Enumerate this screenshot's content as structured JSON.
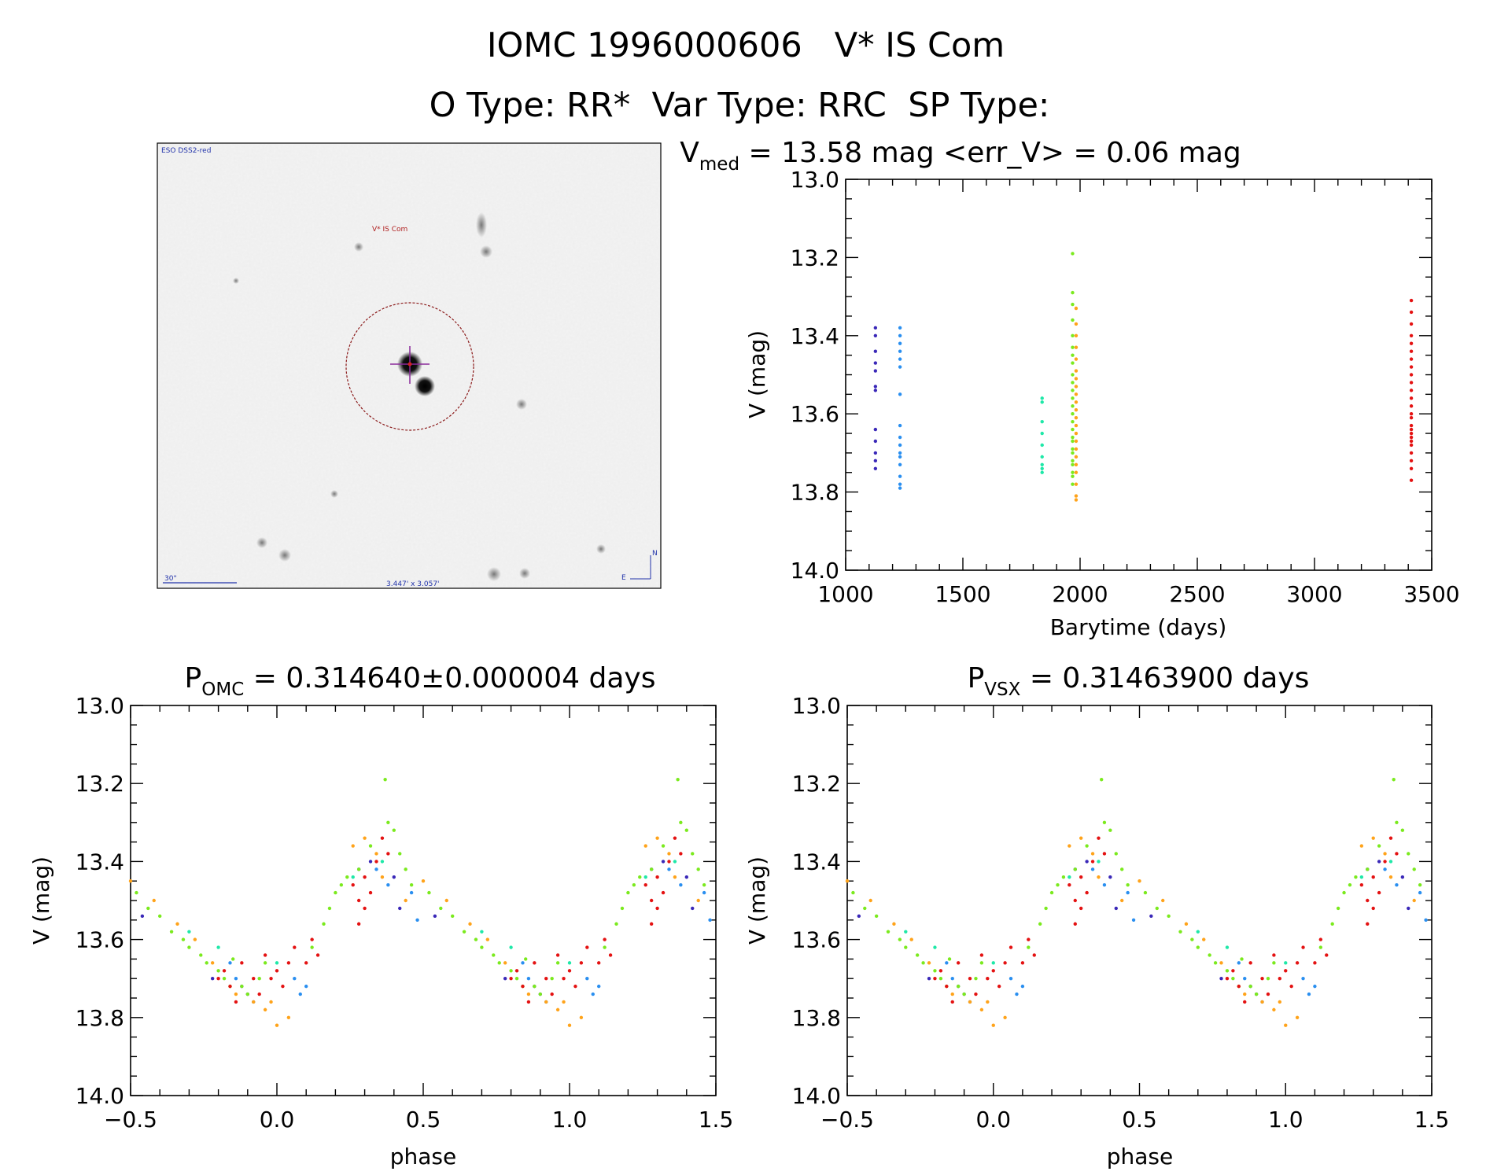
{
  "header": {
    "line1": "IOMC 1996000606   V* IS Com",
    "line2": "O Type: RR*  Var Type: RRC  SP Type:"
  },
  "finder": {
    "survey": "ESO DSS2-red",
    "target_label": "V* IS Com",
    "scale_label": "30\"",
    "size_label": "3.447' x 3.057'",
    "north": "N",
    "east": "E"
  },
  "series_colors": {
    "purple": "#3a28b8",
    "blue": "#2a8ff0",
    "cyan": "#1fe8a8",
    "green": "#7bea1e",
    "orange": "#ffa31a",
    "red": "#e41212"
  },
  "chart_data": [
    {
      "id": "lightcurve",
      "type": "scatter",
      "title_main": "V",
      "title_sub": "med",
      "title_rest": " = 13.58 mag <err_V> = 0.06 mag",
      "xlabel": "Barytime (days)",
      "ylabel": "V (mag)",
      "xlim": [
        1000,
        3500
      ],
      "ylim": [
        14.0,
        13.0
      ],
      "xticks": [
        "1000",
        "1500",
        "2000",
        "2500",
        "3000",
        "3500"
      ],
      "yticks": [
        "13.0",
        "13.2",
        "13.4",
        "13.6",
        "13.8",
        "14.0"
      ],
      "series": [
        {
          "name": "purple",
          "x": [
            1127,
            1127,
            1127,
            1127,
            1127,
            1127,
            1127,
            1127,
            1127,
            1127,
            1127,
            1127
          ],
          "y": [
            13.38,
            13.4,
            13.44,
            13.47,
            13.49,
            13.53,
            13.54,
            13.64,
            13.67,
            13.7,
            13.72,
            13.74
          ]
        },
        {
          "name": "blue",
          "x": [
            1232,
            1232,
            1232,
            1232,
            1232,
            1232,
            1232,
            1232,
            1232,
            1232,
            1232,
            1232,
            1232,
            1232,
            1232,
            1232
          ],
          "y": [
            13.38,
            13.4,
            13.42,
            13.44,
            13.46,
            13.48,
            13.55,
            13.63,
            13.66,
            13.68,
            13.7,
            13.71,
            13.73,
            13.76,
            13.78,
            13.79
          ]
        },
        {
          "name": "cyan",
          "x": [
            1838,
            1838,
            1838,
            1838,
            1838,
            1838,
            1838,
            1838,
            1838
          ],
          "y": [
            13.56,
            13.57,
            13.62,
            13.65,
            13.68,
            13.71,
            13.73,
            13.74,
            13.75
          ]
        },
        {
          "name": "green",
          "x": [
            1968,
            1968,
            1968,
            1968,
            1968,
            1968,
            1968,
            1968,
            1968,
            1968,
            1968,
            1968,
            1968,
            1968,
            1968,
            1968,
            1968,
            1968,
            1968,
            1968,
            1968,
            1968,
            1968,
            1968,
            1968
          ],
          "y": [
            13.19,
            13.29,
            13.32,
            13.36,
            13.4,
            13.43,
            13.45,
            13.47,
            13.5,
            13.52,
            13.54,
            13.56,
            13.58,
            13.6,
            13.62,
            13.64,
            13.66,
            13.67,
            13.69,
            13.7,
            13.72,
            13.73,
            13.75,
            13.76,
            13.78
          ]
        },
        {
          "name": "orange",
          "x": [
            1983,
            1983,
            1983,
            1983,
            1983,
            1983,
            1983,
            1983,
            1983,
            1983,
            1983,
            1983,
            1983,
            1983,
            1983,
            1983,
            1983,
            1983,
            1983,
            1983,
            1983,
            1983
          ],
          "y": [
            13.33,
            13.37,
            13.4,
            13.43,
            13.46,
            13.49,
            13.51,
            13.53,
            13.55,
            13.57,
            13.59,
            13.61,
            13.63,
            13.65,
            13.67,
            13.69,
            13.71,
            13.73,
            13.75,
            13.78,
            13.81,
            13.82
          ]
        },
        {
          "name": "red",
          "x": [
            3413,
            3413,
            3413,
            3413,
            3413,
            3413,
            3413,
            3413,
            3413,
            3413,
            3413,
            3413,
            3413,
            3413,
            3413,
            3413,
            3413,
            3413,
            3413,
            3413,
            3413,
            3413,
            3413,
            3413,
            3413
          ],
          "y": [
            13.31,
            13.34,
            13.37,
            13.4,
            13.42,
            13.44,
            13.46,
            13.48,
            13.5,
            13.52,
            13.54,
            13.56,
            13.58,
            13.6,
            13.61,
            13.63,
            13.64,
            13.65,
            13.66,
            13.67,
            13.68,
            13.7,
            13.72,
            13.74,
            13.77
          ]
        }
      ]
    },
    {
      "id": "phase-omc",
      "type": "scatter",
      "title_main": "P",
      "title_sub": "OMC",
      "title_rest": " = 0.314640±0.000004 days",
      "xlabel": "phase",
      "ylabel": "V (mag)",
      "xlim": [
        -0.5,
        1.5
      ],
      "ylim": [
        14.0,
        13.0
      ],
      "xticks": [
        "−0.5",
        "0.0",
        "0.5",
        "1.0",
        "1.5"
      ],
      "yticks": [
        "13.0",
        "13.2",
        "13.4",
        "13.6",
        "13.8",
        "14.0"
      ],
      "series": [
        {
          "name": "purple",
          "x": [
            -0.46,
            -0.22,
            -0.12,
            -0.1,
            0.28,
            0.32,
            0.4,
            0.42
          ],
          "y": [
            13.54,
            13.7,
            13.72,
            13.74,
            13.42,
            13.4,
            13.44,
            13.52
          ]
        },
        {
          "name": "blue",
          "x": [
            -0.16,
            -0.14,
            -0.08,
            0.06,
            0.08,
            0.1,
            0.34,
            0.38,
            0.46,
            0.48
          ],
          "y": [
            13.66,
            13.7,
            13.76,
            13.7,
            13.74,
            13.72,
            13.42,
            13.46,
            13.48,
            13.55
          ]
        },
        {
          "name": "cyan",
          "x": [
            -0.3,
            -0.2,
            0.0,
            0.26,
            0.36
          ],
          "y": [
            13.58,
            13.62,
            13.66,
            13.44,
            13.4
          ]
        },
        {
          "name": "green",
          "x": [
            -0.48,
            -0.44,
            -0.4,
            -0.36,
            -0.32,
            -0.3,
            -0.26,
            -0.24,
            -0.2,
            -0.18,
            -0.16,
            -0.12,
            -0.1,
            -0.06,
            -0.04,
            0.12,
            0.16,
            0.18,
            0.2,
            0.22,
            0.24,
            0.28,
            0.32,
            0.38,
            0.4,
            0.42,
            0.44,
            0.46,
            -0.15,
            0.37
          ],
          "y": [
            13.48,
            13.52,
            13.54,
            13.58,
            13.6,
            13.62,
            13.64,
            13.66,
            13.68,
            13.7,
            13.72,
            13.72,
            13.74,
            13.7,
            13.66,
            13.62,
            13.56,
            13.52,
            13.48,
            13.46,
            13.44,
            13.42,
            13.36,
            13.3,
            13.32,
            13.38,
            13.42,
            13.46,
            13.65,
            13.19
          ]
        },
        {
          "name": "orange",
          "x": [
            -0.5,
            -0.42,
            -0.34,
            -0.28,
            -0.22,
            -0.14,
            -0.08,
            -0.04,
            0.0,
            0.04,
            0.26,
            0.3,
            0.34,
            0.36,
            0.44,
            -0.02
          ],
          "y": [
            13.45,
            13.5,
            13.56,
            13.6,
            13.66,
            13.74,
            13.76,
            13.78,
            13.82,
            13.8,
            13.36,
            13.34,
            13.38,
            13.44,
            13.5,
            13.76
          ]
        },
        {
          "name": "red",
          "x": [
            -0.2,
            -0.18,
            -0.16,
            -0.12,
            -0.08,
            -0.06,
            -0.04,
            0.0,
            0.02,
            0.04,
            0.06,
            0.1,
            0.12,
            0.14,
            0.26,
            0.28,
            0.3,
            0.32,
            0.34,
            0.36,
            0.38,
            0.3,
            0.28,
            -0.14,
            -0.02
          ],
          "y": [
            13.7,
            13.68,
            13.72,
            13.66,
            13.7,
            13.74,
            13.64,
            13.68,
            13.72,
            13.66,
            13.62,
            13.66,
            13.6,
            13.64,
            13.46,
            13.5,
            13.44,
            13.48,
            13.4,
            13.34,
            13.38,
            13.52,
            13.56,
            13.76,
            13.7
          ]
        }
      ]
    },
    {
      "id": "phase-vsx",
      "type": "scatter",
      "title_main": "P",
      "title_sub": "VSX",
      "title_rest": " = 0.31463900 days",
      "xlabel": "phase",
      "ylabel": "V (mag)",
      "xlim": [
        -0.5,
        1.5
      ],
      "ylim": [
        14.0,
        13.0
      ],
      "xticks": [
        "−0.5",
        "0.0",
        "0.5",
        "1.0",
        "1.5"
      ],
      "yticks": [
        "13.0",
        "13.2",
        "13.4",
        "13.6",
        "13.8",
        "14.0"
      ],
      "series": [
        {
          "name": "purple",
          "x": [
            -0.46,
            -0.22,
            -0.12,
            -0.1,
            0.28,
            0.32,
            0.4,
            0.42
          ],
          "y": [
            13.54,
            13.7,
            13.72,
            13.74,
            13.42,
            13.4,
            13.44,
            13.52
          ]
        },
        {
          "name": "blue",
          "x": [
            -0.16,
            -0.14,
            -0.08,
            0.06,
            0.08,
            0.1,
            0.34,
            0.38,
            0.46,
            0.48
          ],
          "y": [
            13.66,
            13.7,
            13.76,
            13.7,
            13.74,
            13.72,
            13.42,
            13.46,
            13.48,
            13.55
          ]
        },
        {
          "name": "cyan",
          "x": [
            -0.3,
            -0.2,
            0.0,
            0.26,
            0.36
          ],
          "y": [
            13.58,
            13.62,
            13.66,
            13.44,
            13.4
          ]
        },
        {
          "name": "green",
          "x": [
            -0.48,
            -0.44,
            -0.4,
            -0.36,
            -0.32,
            -0.3,
            -0.26,
            -0.24,
            -0.2,
            -0.18,
            -0.16,
            -0.12,
            -0.1,
            -0.06,
            -0.04,
            0.12,
            0.16,
            0.18,
            0.2,
            0.22,
            0.24,
            0.28,
            0.32,
            0.38,
            0.4,
            0.42,
            0.44,
            0.46,
            -0.15,
            0.37
          ],
          "y": [
            13.48,
            13.52,
            13.54,
            13.58,
            13.6,
            13.62,
            13.64,
            13.66,
            13.68,
            13.7,
            13.72,
            13.72,
            13.74,
            13.7,
            13.66,
            13.62,
            13.56,
            13.52,
            13.48,
            13.46,
            13.44,
            13.42,
            13.36,
            13.3,
            13.32,
            13.38,
            13.42,
            13.46,
            13.65,
            13.19
          ]
        },
        {
          "name": "orange",
          "x": [
            -0.5,
            -0.42,
            -0.34,
            -0.28,
            -0.22,
            -0.14,
            -0.08,
            -0.04,
            0.0,
            0.04,
            0.26,
            0.3,
            0.34,
            0.36,
            0.44,
            -0.02
          ],
          "y": [
            13.45,
            13.5,
            13.56,
            13.6,
            13.66,
            13.74,
            13.76,
            13.78,
            13.82,
            13.8,
            13.36,
            13.34,
            13.38,
            13.44,
            13.5,
            13.76
          ]
        },
        {
          "name": "red",
          "x": [
            -0.2,
            -0.18,
            -0.16,
            -0.12,
            -0.08,
            -0.06,
            -0.04,
            0.0,
            0.02,
            0.04,
            0.06,
            0.1,
            0.12,
            0.14,
            0.26,
            0.28,
            0.3,
            0.32,
            0.34,
            0.36,
            0.38,
            0.3,
            0.28,
            -0.14,
            -0.02
          ],
          "y": [
            13.7,
            13.68,
            13.72,
            13.66,
            13.7,
            13.74,
            13.64,
            13.68,
            13.72,
            13.66,
            13.62,
            13.66,
            13.6,
            13.64,
            13.46,
            13.5,
            13.44,
            13.48,
            13.4,
            13.34,
            13.38,
            13.52,
            13.56,
            13.76,
            13.7
          ]
        }
      ]
    }
  ]
}
